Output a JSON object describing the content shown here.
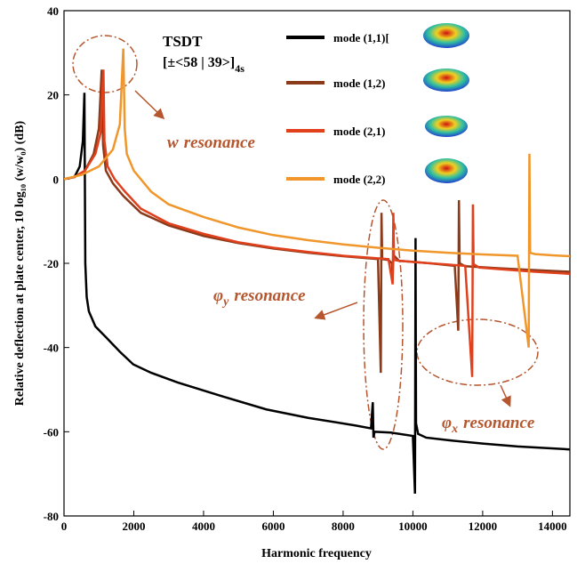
{
  "chart_data": {
    "type": "line",
    "xlabel": "Harmonic frequency",
    "ylabel": "Relative deflection at plate center, 10 log₁₀ (w/w₀) (dB)",
    "xlim": [
      0,
      14500
    ],
    "ylim": [
      -80,
      40
    ],
    "xticks": [
      0,
      2000,
      4000,
      6000,
      8000,
      10000,
      12000,
      14000
    ],
    "yticks": [
      -80,
      -60,
      -40,
      -20,
      0,
      20,
      40
    ],
    "grid": false,
    "legend": "top-center",
    "laminate": {
      "name": "TSDT",
      "layup": "[±<58 | 39>]",
      "layup_sub": "4s"
    },
    "annotations": [
      {
        "text": "w",
        "sub": "",
        "rest": "resonance"
      },
      {
        "text": "φ",
        "sub": "y",
        "rest": "resonance"
      },
      {
        "text": "φ",
        "sub": "x",
        "rest": "resonance"
      }
    ],
    "series": [
      {
        "name": "mode (1,1)[",
        "color": "#000000",
        "x": [
          0,
          300,
          450,
          540,
          585,
          610,
          650,
          712,
          900,
          1220,
          1600,
          1985,
          2500,
          3257,
          4500,
          5800,
          7000,
          8346,
          8800,
          8850,
          8870,
          8900,
          9364,
          10000,
          10060,
          10076,
          10090,
          10150,
          10382,
          11000,
          12000,
          13000,
          14500
        ],
        "values": [
          0,
          0.5,
          3,
          9,
          20.5,
          -20,
          -28,
          -31.4,
          -35,
          -37.7,
          -41,
          -44,
          -46,
          -48.3,
          -51.5,
          -54.7,
          -56.7,
          -58.5,
          -59.2,
          -53,
          -61.4,
          -60,
          -60.2,
          -61,
          -74.7,
          -14,
          -58,
          -60.5,
          -61.4,
          -62,
          -62.8,
          -63.5,
          -64.2
        ]
      },
      {
        "name": "mode (1,2)",
        "color": "#8b3a1a",
        "x": [
          0,
          300,
          600,
          850,
          1000,
          1080,
          1120,
          1200,
          1400,
          1700,
          2200,
          3000,
          4000,
          5000,
          6000,
          7000,
          8000,
          9000,
          9080,
          9100,
          9120,
          9300,
          9400,
          9420,
          9440,
          9600,
          10500,
          11200,
          11300,
          11320,
          11340,
          11500,
          12500,
          13500,
          14500
        ],
        "values": [
          0,
          0.5,
          2,
          6,
          12,
          26,
          8,
          2,
          -1,
          -4,
          -8,
          -11,
          -13.5,
          -15.2,
          -16.5,
          -17.5,
          -18.3,
          -19,
          -46,
          -8,
          -19,
          -19.2,
          -20,
          -24,
          -18,
          -19.4,
          -20,
          -20.6,
          -36,
          -5,
          -20,
          -20.7,
          -21.2,
          -21.6,
          -22
        ]
      },
      {
        "name": "mode (2,1)",
        "color": "#e0401c",
        "x": [
          0,
          300,
          600,
          900,
          1050,
          1130,
          1160,
          1250,
          1450,
          1750,
          2200,
          3000,
          4000,
          5000,
          6000,
          7000,
          8000,
          9000,
          9300,
          9420,
          9440,
          9460,
          9600,
          10500,
          11500,
          11700,
          11720,
          11740,
          11900,
          12500,
          13500,
          14500
        ],
        "values": [
          0,
          0.5,
          2,
          6,
          11,
          26,
          9,
          3,
          0,
          -3,
          -7,
          -10.5,
          -13,
          -15,
          -16.3,
          -17.3,
          -18.2,
          -18.8,
          -19,
          -25,
          -8,
          -19.2,
          -19.4,
          -20,
          -20.6,
          -47,
          -6,
          -20.2,
          -21,
          -21.4,
          -22,
          -22.5
        ]
      },
      {
        "name": "mode (2,2)",
        "color": "#f0962a",
        "x": [
          0,
          500,
          1000,
          1400,
          1600,
          1700,
          1740,
          1800,
          2000,
          2500,
          3000,
          4000,
          5000,
          6000,
          7000,
          8000,
          9000,
          10000,
          11000,
          12000,
          13000,
          13320,
          13340,
          13360,
          13500,
          14000,
          14500
        ],
        "values": [
          0,
          1,
          3,
          7,
          13,
          31,
          12,
          6,
          2,
          -3,
          -6,
          -9,
          -11.5,
          -13.3,
          -14.5,
          -15.5,
          -16.3,
          -17,
          -17.5,
          -17.9,
          -18.2,
          -40,
          6,
          -17.5,
          -17.8,
          -18.1,
          -18.3
        ]
      }
    ]
  }
}
